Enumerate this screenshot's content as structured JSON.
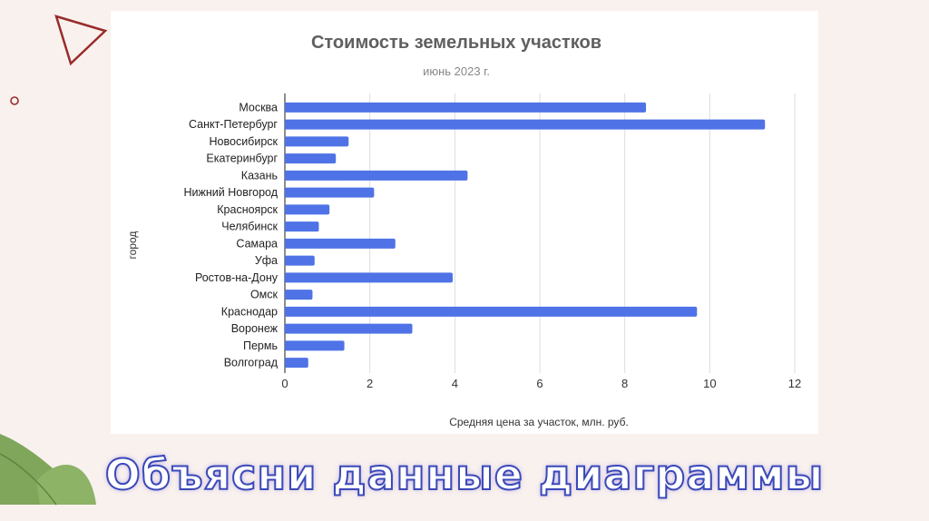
{
  "slide": {
    "caption": "Объясни данные диаграммы",
    "colors": {
      "background": "#f8f1ee",
      "accent": "#9a2b2b",
      "leaf": "#7fa65a",
      "caption_stroke": "#3a49b8"
    }
  },
  "chart_data": {
    "type": "bar",
    "orientation": "horizontal",
    "title": "Стоимость земельных участков",
    "subtitle": "июнь 2023 г.",
    "xlabel": "Средняя цена за участок, млн. руб.",
    "ylabel": "город",
    "xlim": [
      0,
      12
    ],
    "xticks": [
      0,
      2,
      4,
      6,
      8,
      10,
      12
    ],
    "grid": "vertical",
    "bar_color": "#4f73e6",
    "categories": [
      "Москва",
      "Санкт-Петербург",
      "Новосибирск",
      "Екатеринбург",
      "Казань",
      "Нижний Новгород",
      "Красноярск",
      "Челябинск",
      "Самара",
      "Уфа",
      "Ростов-на-Дону",
      "Омск",
      "Краснодар",
      "Воронеж",
      "Пермь",
      "Волгоград"
    ],
    "values": [
      8.5,
      11.3,
      1.5,
      1.2,
      4.3,
      2.1,
      1.05,
      0.8,
      2.6,
      0.7,
      3.95,
      0.65,
      9.7,
      3.0,
      1.4,
      0.55
    ]
  }
}
